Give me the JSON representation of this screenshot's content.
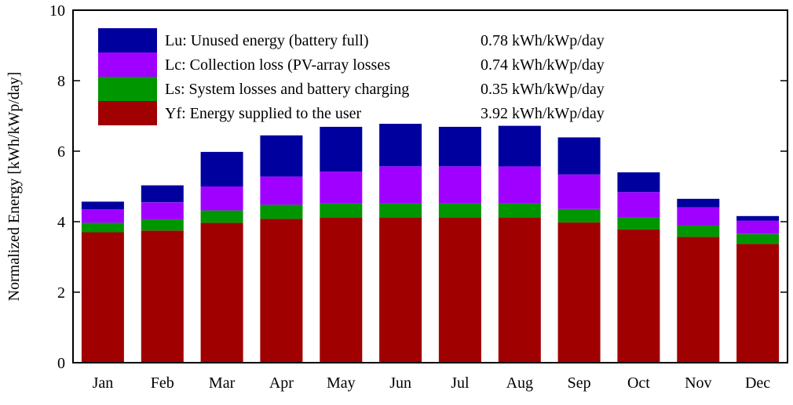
{
  "chart_data": {
    "type": "bar",
    "stacked": true,
    "title": "",
    "xlabel": "",
    "ylabel": "Normalized Energy [kWh/kWp/day]",
    "ylim": [
      0,
      10
    ],
    "yticks": [
      0,
      2,
      4,
      6,
      8,
      10
    ],
    "grid": false,
    "legend_position": "top-left",
    "categories": [
      "Jan",
      "Feb",
      "Mar",
      "Apr",
      "May",
      "Jun",
      "Jul",
      "Aug",
      "Sep",
      "Oct",
      "Nov",
      "Dec"
    ],
    "series": [
      {
        "name": "Yf: Energy supplied to the user",
        "value_label": "3.92 kWh/kWp/day",
        "color": "#a00000",
        "values": [
          3.7,
          3.75,
          3.97,
          4.08,
          4.12,
          4.12,
          4.12,
          4.12,
          3.98,
          3.78,
          3.57,
          3.37
        ]
      },
      {
        "name": "Ls: System losses and battery charging",
        "value_label": "0.35 kWh/kWp/day",
        "color": "#009600",
        "values": [
          0.27,
          0.32,
          0.35,
          0.4,
          0.4,
          0.4,
          0.4,
          0.4,
          0.38,
          0.34,
          0.32,
          0.28
        ]
      },
      {
        "name": "Lc: Collection loss (PV-array losses",
        "value_label": "0.74 kWh/kWp/day",
        "color": "#a000ff",
        "values": [
          0.38,
          0.48,
          0.68,
          0.8,
          0.9,
          1.05,
          1.05,
          1.05,
          0.98,
          0.72,
          0.52,
          0.38
        ]
      },
      {
        "name": "Lu: Unused energy (battery full)",
        "value_label": "0.78 kWh/kWp/day",
        "color": "#00009e",
        "values": [
          0.22,
          0.48,
          0.98,
          1.17,
          1.27,
          1.37,
          1.12,
          1.15,
          1.05,
          0.56,
          0.24,
          0.13
        ]
      }
    ],
    "legend_order": [
      3,
      2,
      1,
      0
    ]
  }
}
